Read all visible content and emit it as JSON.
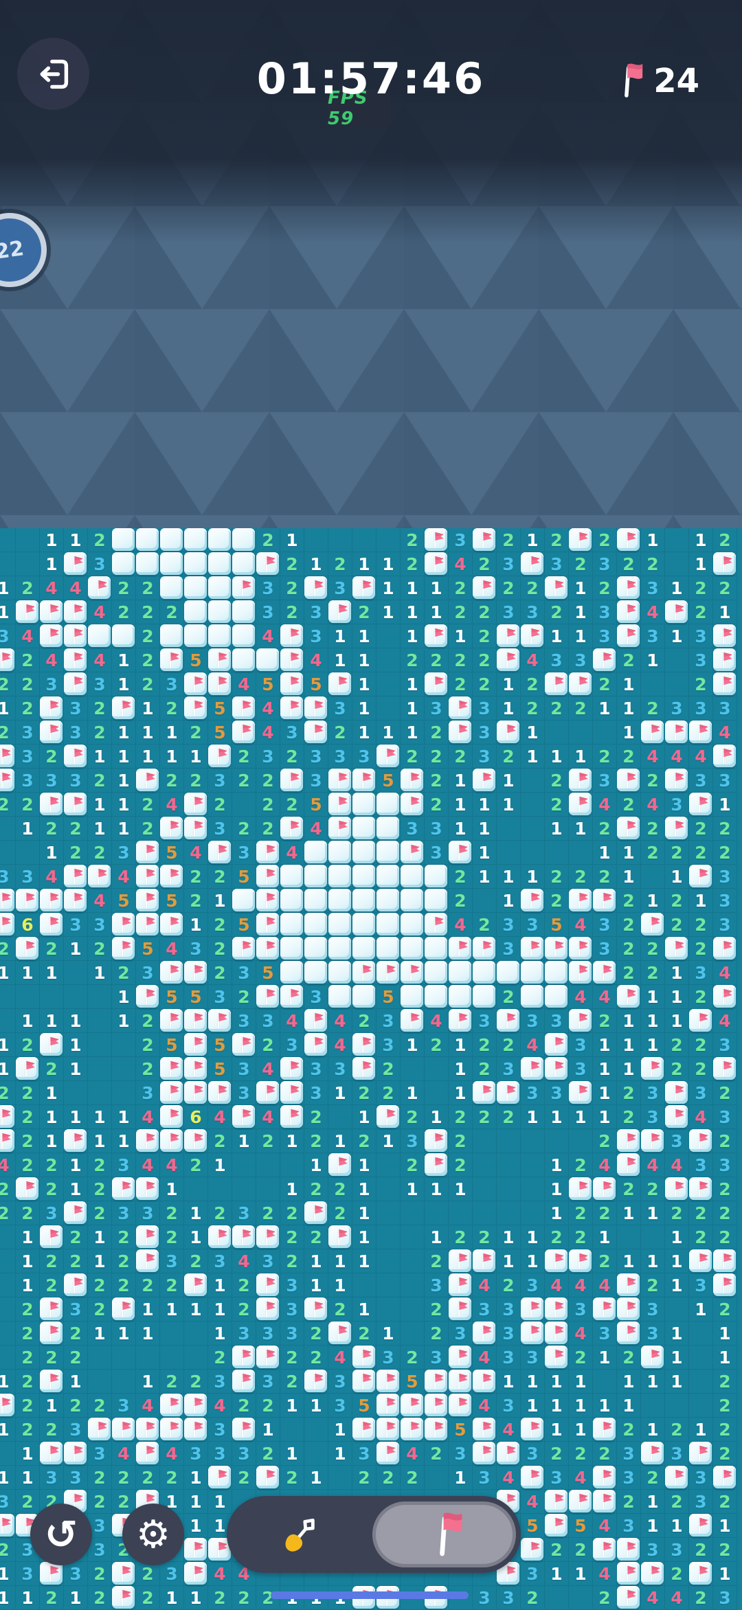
{
  "header": {
    "timer": "01:57:46",
    "fps_label": "FPS 59",
    "flags_remaining": "24"
  },
  "badge": {
    "value": "22"
  },
  "toolbar": {
    "buttons": [
      "undo",
      "settings",
      "dig-mode",
      "flag-mode"
    ],
    "selected_mode": "flag-mode",
    "undo_glyph": "↺",
    "gear_glyph": "⚙"
  },
  "colors": {
    "board_teal": "#17809b",
    "grid_line": "#14748d",
    "sky_base": "#47637e",
    "sky_light_facet": "#4e6b87",
    "sky_dark_facet": "#415d78",
    "top_bar_dark": "#1b2433",
    "flag_pink": "#f46f90",
    "tile_ice": "#e9f8fc",
    "toolbar_dark": "#3c4154",
    "toggle_selected_gray": "#9b9ca8",
    "home_indicator_blue": "#5b79e4",
    "fps_green": "#3ecb6f",
    "number_colors": {
      "1": "#ffffff",
      "2": "#72e8a0",
      "3": "#4fc4ea",
      "4": "#f2688e",
      "5": "#e09c40",
      "6": "#e6ef5e"
    }
  },
  "board": {
    "cols": 31,
    "rows": 45,
    "cell_size": 35,
    "legend": {
      ".": "revealed empty",
      "1-6": "adjacent mine count",
      "F": "flagged tile",
      "C": "closed ice tile"
    },
    "rows_data": [
      ".,.,1,1,2,C,C,C,C,C,C,2,1,.,.,.,.,2,F,3,F,2,1,2,F,2,F,1,.,1,2",
      ".,.,1,F,3,C,C,C,C,C,C,F,2,1,2,1,1,2,F,4,2,3,F,3,2,3,2,2,.,1,F",
      "1,2,4,4,F,2,2,C,C,C,F,3,2,F,3,F,1,1,1,2,F,2,2,F,1,2,F,3,1,2,2",
      "1,F,F,F,4,2,2,2,C,C,C,3,2,3,F,2,1,1,1,2,2,3,3,2,1,3,F,4,F,2,1",
      "3,4,F,F,C,C,2,C,C,C,C,4,F,3,1,1,.,1,F,1,2,F,F,1,1,3,F,3,1,3,F",
      "F,2,4,F,4,1,2,F,5,F,C,C,F,4,1,1,.,2,2,2,2,F,4,3,3,F,2,1,.,3,F",
      "2,2,3,F,3,1,2,3,F,F,4,5,F,5,F,1,.,1,F,2,2,1,2,F,F,2,1,.,.,2,F",
      "1,2,F,3,2,F,1,2,F,5,F,4,F,F,3,1,.,1,3,F,3,1,2,2,2,1,1,2,3,3,3",
      "2,3,F,3,2,1,1,1,2,5,F,4,3,F,2,1,1,1,2,F,3,F,1,.,.,.,1,F,F,F,4",
      "F,3,2,F,1,1,1,1,1,F,2,3,2,3,3,3,F,2,2,2,3,2,1,1,1,2,2,4,4,4,F",
      "F,3,3,3,2,1,F,2,2,3,2,2,F,3,F,F,5,F,2,1,F,1,.,2,F,3,F,2,F,3,3",
      "2,2,F,F,1,1,2,4,F,2,.,2,2,5,F,C,C,F,2,1,1,1,.,2,F,4,2,4,3,F,1",
      ".,1,2,2,1,1,2,F,F,3,2,2,F,4,F,C,C,3,3,1,1,.,.,1,1,2,F,2,F,2,2",
      ".,.,1,2,2,3,F,5,4,F,3,F,4,C,C,C,C,F,3,F,1,.,.,.,.,1,1,2,2,2,2",
      "3,3,4,F,F,4,F,F,2,2,5,F,C,C,C,C,C,C,C,2,1,1,1,2,2,2,1,.,1,F,3",
      "F,F,F,F,4,5,F,5,2,1,C,F,C,C,C,C,C,C,C,2,.,1,F,2,F,F,2,1,2,1,3",
      "F,6,F,3,3,F,F,F,1,2,5,F,C,C,C,C,C,C,F,4,2,3,3,5,4,3,2,F,2,2,3",
      "2,F,2,1,2,F,5,4,3,2,F,F,C,C,C,C,C,C,C,F,F,3,F,F,F,3,2,2,F,2,F",
      "1,1,1,.,1,2,3,F,F,2,3,5,C,C,C,F,F,F,C,C,C,C,C,C,F,F,2,2,1,3,4",
      ".,.,.,.,.,1,F,5,5,3,2,F,F,3,C,C,5,C,C,C,C,2,C,C,4,4,F,1,1,2,F",
      ".,1,1,1,.,1,2,F,F,F,3,3,4,F,4,2,3,F,4,F,3,F,3,3,F,2,1,1,1,F,4",
      "1,2,F,1,.,.,2,5,F,5,F,2,3,F,4,F,3,1,2,1,2,2,4,F,3,1,1,1,2,2,3",
      "1,F,2,1,.,.,2,F,F,5,3,4,F,3,3,F,2,.,.,1,2,3,F,F,3,1,1,F,2,2,F",
      "2,2,1,.,.,.,3,F,F,F,3,F,F,3,1,2,2,1,.,1,F,F,3,3,F,1,2,3,F,3,2",
      "F,2,1,1,1,1,4,F,6,4,F,4,F,2,.,1,F,2,1,2,2,2,1,1,1,1,2,3,F,4,3",
      "F,2,1,F,1,1,F,F,F,2,1,2,1,2,1,2,1,3,F,2,.,.,.,.,.,2,F,F,3,F,2",
      "4,2,2,1,2,3,4,4,2,1,.,.,.,1,F,1,.,2,F,2,.,.,.,1,2,4,F,4,4,3,3",
      "2,F,2,1,2,F,F,1,.,.,.,.,1,2,2,1,.,1,1,1,.,.,.,1,F,F,2,2,F,F,2",
      "2,2,3,F,2,3,3,2,1,2,3,2,2,F,2,1,.,.,.,.,.,.,.,1,2,2,1,1,2,2,2",
      ".,1,F,2,1,2,F,2,1,F,F,F,2,2,F,1,.,.,1,2,2,1,1,2,2,1,.,.,1,2,2",
      ".,1,2,2,1,2,F,3,2,3,4,3,2,1,1,1,.,.,2,F,F,1,1,F,F,2,1,1,1,F,F",
      ".,1,2,F,2,2,2,2,F,1,2,F,3,1,1,.,.,.,3,F,4,2,3,4,4,4,F,2,1,3,F",
      ".,2,F,3,2,F,1,1,1,1,2,F,3,F,2,1,.,.,2,F,3,3,F,F,3,F,F,3,.,1,2",
      ".,2,F,2,1,1,1,.,.,1,3,3,3,2,F,2,1,.,2,3,F,3,F,F,4,3,F,3,1,.,1",
      ".,2,2,2,.,.,.,.,.,2,F,F,2,2,4,F,3,2,3,F,4,3,3,F,2,1,2,F,1,.,1",
      "1,2,F,1,.,.,1,2,2,3,F,3,2,F,3,F,F,5,F,F,F,1,1,1,1,.,1,1,1,.,2",
      "F,2,1,2,2,3,4,F,F,4,2,2,1,1,3,5,F,F,F,F,4,3,1,1,1,1,1,.,.,.,2",
      "1,2,2,3,F,F,F,F,F,3,F,1,.,.,1,F,F,F,F,5,F,4,F,1,1,F,2,1,2,1,2",
      ".,1,F,F,3,4,F,4,3,3,3,2,1,.,1,3,F,4,2,3,F,F,3,2,2,2,3,F,3,F,2",
      "1,1,3,3,2,2,2,2,1,F,2,F,2,1,.,2,2,2,.,1,3,4,F,3,4,F,3,2,F,3,F",
      "3,2,2,F,2,2,F,1,1,1,.,.,.,.,.,.,.,.,.,.,.,F,4,F,F,F,2,1,2,3,2",
      "F,F,3,2,3,F,1,1,1,1,.,.,.,.,.,.,.,.,.,.,.,.,5,F,5,4,3,1,1,F,1",
      "2,3,2,1,3,2,2,2,F,F,.,.,.,.,.,.,.,.,.,.,.,.,F,2,2,F,F,3,3,2,2",
      "1,3,F,3,2,F,2,3,F,4,4,.,.,.,.,.,.,.,.,.,.,F,3,1,1,4,F,F,2,F,1",
      "1,1,2,1,2,F,2,1,1,2,2,2,1,1,1,F,F,.,F,.,3,3,2,.,.,2,F,4,4,2,3"
    ]
  }
}
